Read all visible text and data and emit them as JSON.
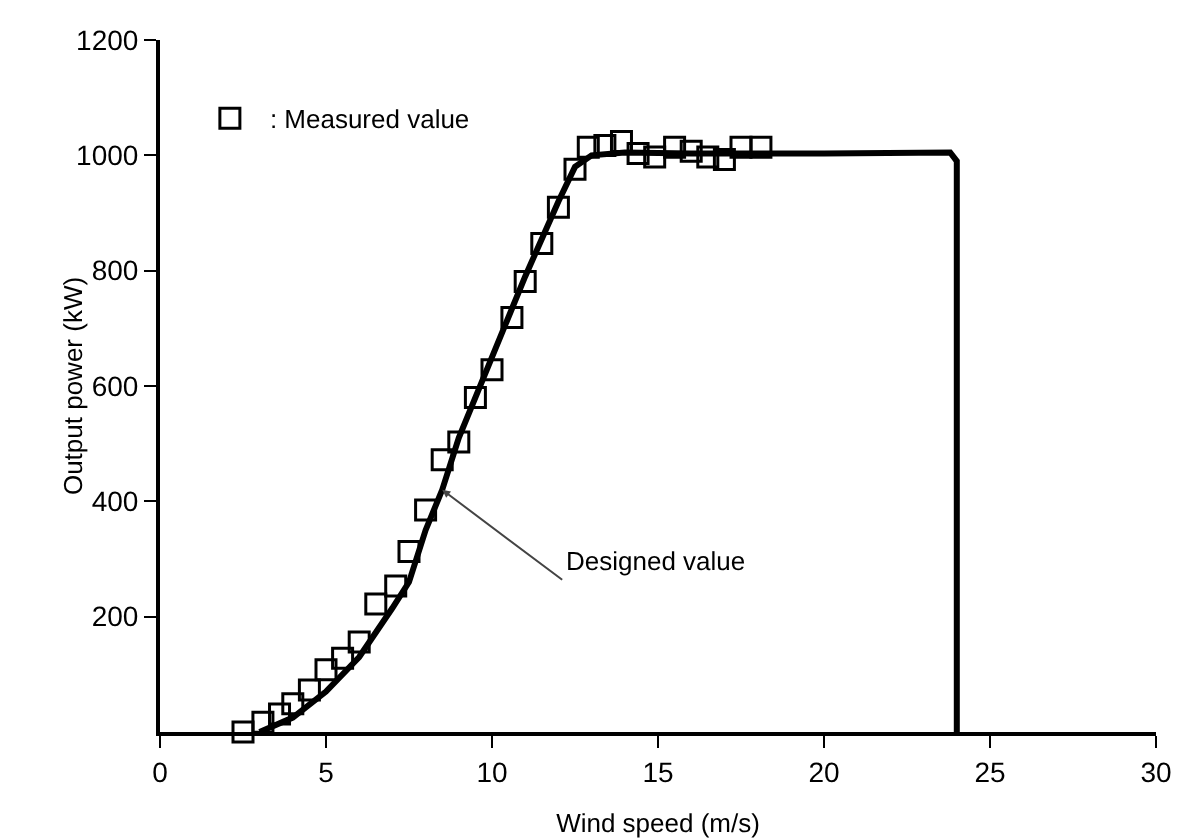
{
  "chart_data": {
    "type": "scatter",
    "xlabel": "Wind speed (m/s)",
    "ylabel": "Output power (kW)",
    "xlim": [
      0,
      30
    ],
    "xticks": [
      0,
      5,
      10,
      15,
      20,
      25,
      30
    ],
    "ylim": [
      0,
      1200
    ],
    "yticks": [
      200,
      400,
      600,
      800,
      1000,
      1200
    ],
    "grid": false,
    "legend": "top left",
    "marker": "square",
    "series": [
      {
        "name": ": Measured value",
        "type": "scatter",
        "color": "#000000",
        "x": [
          2.5,
          3.1,
          3.6,
          4.0,
          4.5,
          5.0,
          5.5,
          6.0,
          6.5,
          7.1,
          7.5,
          8.0,
          8.5,
          9.0,
          9.5,
          10.0,
          10.6,
          11.0,
          11.5,
          12.0,
          12.5,
          12.9,
          13.4,
          13.9,
          14.4,
          14.9,
          15.5,
          16.0,
          16.5,
          17.0,
          17.5,
          18.1
        ],
        "values": [
          0,
          17,
          31,
          49,
          73,
          108,
          128,
          156,
          222,
          253,
          313,
          385,
          472,
          503,
          580,
          628,
          719,
          781,
          847,
          910,
          976,
          1014,
          1017,
          1024,
          1003,
          997,
          1014,
          1007,
          997,
          993,
          1014,
          1014
        ]
      },
      {
        "type": "line",
        "color": "#000000",
        "marker": "none",
        "x": [
          3,
          4,
          5,
          6,
          7,
          7.5,
          8,
          8.5,
          9,
          10,
          11,
          12,
          12.5,
          13,
          14,
          16,
          20,
          23.8,
          24,
          24
        ],
        "values": [
          0,
          25,
          70,
          130,
          215,
          260,
          350,
          420,
          510,
          650,
          790,
          920,
          980,
          1000,
          1005,
          1003,
          1003,
          1005,
          990,
          0
        ]
      }
    ],
    "annotations": [
      {
        "text": "Designed value",
        "x": 8.5,
        "y": 420
      }
    ]
  }
}
